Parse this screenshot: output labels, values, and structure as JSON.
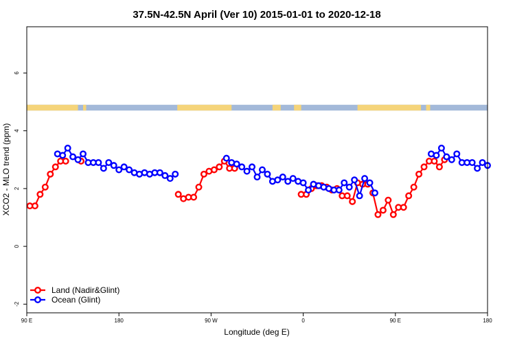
{
  "chart_data": {
    "type": "line",
    "title": "37.5N-42.5N April (Ver 10)   2015-01-01 to 2020-12-18",
    "xlabel": "Longitude (deg E)",
    "ylabel": "XCO2 - MLO trend (ppm)",
    "x_ticks": [
      {
        "value": 90,
        "label": "90 E"
      },
      {
        "value": 180,
        "label": "180"
      },
      {
        "value": 270,
        "label": "90 W"
      },
      {
        "value": 360,
        "label": "0"
      },
      {
        "value": 450,
        "label": "90 E"
      },
      {
        "value": 540,
        "label": "180"
      }
    ],
    "y_ticks": [
      {
        "value": -2,
        "label": "-2"
      },
      {
        "value": 0,
        "label": "0"
      },
      {
        "value": 2,
        "label": "2"
      },
      {
        "value": 4,
        "label": "4"
      },
      {
        "value": 6,
        "label": "6"
      }
    ],
    "xlim": [
      90,
      540
    ],
    "ylim": [
      -2.3,
      7.6
    ],
    "grid": false,
    "legend_position": "bottom-left",
    "land_ocean_band": {
      "y_range": [
        4.7,
        4.9
      ],
      "land_color": "#f5d47a",
      "ocean_color": "#a3b9d9",
      "land_segments": [
        [
          90,
          140
        ],
        [
          145,
          148
        ],
        [
          237,
          290
        ],
        [
          330,
          338
        ],
        [
          351,
          358
        ],
        [
          413,
          475
        ],
        [
          480,
          484
        ]
      ]
    },
    "series": [
      {
        "name": "Land (Nadir&Glint)",
        "color": "#ff0000",
        "x": [
          93,
          98,
          103,
          108,
          113,
          118,
          123,
          128,
          143,
          238,
          243,
          248,
          253,
          258,
          263,
          268,
          273,
          278,
          283,
          288,
          293,
          358,
          363,
          368,
          373,
          378,
          383,
          388,
          393,
          398,
          403,
          408,
          413,
          418,
          423,
          428,
          433,
          438,
          443,
          448,
          453,
          458,
          463,
          468,
          473,
          478,
          483,
          488,
          493,
          498
        ],
        "y": [
          1.4,
          1.4,
          1.8,
          2.05,
          2.5,
          2.75,
          2.95,
          2.95,
          2.95,
          1.8,
          1.65,
          1.7,
          1.7,
          2.05,
          2.5,
          2.6,
          2.65,
          2.75,
          2.95,
          2.7,
          2.7,
          1.8,
          1.8,
          2.0,
          2.1,
          2.1,
          2.05,
          1.95,
          2.0,
          1.75,
          1.75,
          1.55,
          2.2,
          2.15,
          2.15,
          1.85,
          1.1,
          1.25,
          1.6,
          1.1,
          1.35,
          1.35,
          1.75,
          2.05,
          2.5,
          2.75,
          2.95,
          2.95,
          2.75,
          3.0
        ],
        "gaps_after": [
          128,
          143,
          293,
          423
        ]
      },
      {
        "name": "Ocean (Glint)",
        "color": "#0000ff",
        "x": [
          120,
          125,
          130,
          135,
          140,
          145,
          150,
          155,
          160,
          165,
          170,
          175,
          180,
          185,
          190,
          195,
          200,
          205,
          210,
          215,
          220,
          225,
          230,
          235,
          285,
          290,
          295,
          300,
          305,
          310,
          315,
          320,
          325,
          330,
          335,
          340,
          345,
          350,
          355,
          360,
          365,
          370,
          375,
          380,
          385,
          390,
          395,
          400,
          405,
          410,
          415,
          420,
          425,
          430,
          485,
          490,
          495,
          500,
          505,
          510,
          515,
          520,
          525,
          530,
          535,
          540
        ],
        "y": [
          3.2,
          3.15,
          3.4,
          3.1,
          3.0,
          3.2,
          2.9,
          2.9,
          2.9,
          2.7,
          2.9,
          2.8,
          2.65,
          2.75,
          2.65,
          2.55,
          2.5,
          2.55,
          2.5,
          2.55,
          2.55,
          2.45,
          2.35,
          2.5,
          3.05,
          2.9,
          2.85,
          2.75,
          2.6,
          2.75,
          2.4,
          2.65,
          2.5,
          2.25,
          2.3,
          2.4,
          2.25,
          2.35,
          2.25,
          2.2,
          1.95,
          2.15,
          2.1,
          2.05,
          2.0,
          1.95,
          1.95,
          2.2,
          2.05,
          2.3,
          1.75,
          2.35,
          2.2,
          1.85,
          3.2,
          3.15,
          3.4,
          3.1,
          3.0,
          3.2,
          2.9,
          2.9,
          2.9,
          2.7,
          2.9,
          2.8
        ],
        "gaps_after": [
          235,
          430
        ]
      }
    ]
  }
}
